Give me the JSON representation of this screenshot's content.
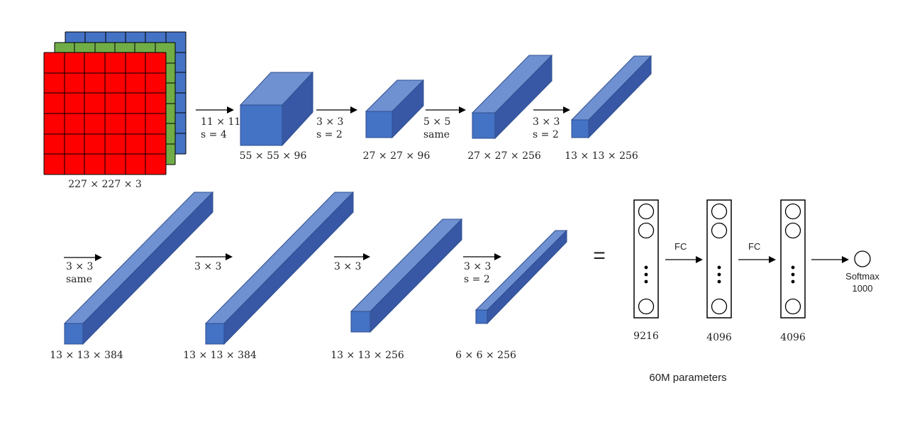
{
  "input": {
    "label": "227 × 227 × 3",
    "channel_colors": {
      "red": "#ff0000",
      "green": "#70ad47",
      "blue": "#4472c4"
    }
  },
  "colors": {
    "block_front": "#4472c4",
    "block_top": "#6f90d1",
    "block_side": "#3858a6",
    "edge": "#2f4f8f"
  },
  "row1": {
    "ops": [
      {
        "line1": "11 × 11",
        "line2": "s = 4"
      },
      {
        "line1": "3 × 3",
        "line2": "s = 2"
      },
      {
        "line1": "5 × 5",
        "line2": "same"
      },
      {
        "line1": "3 × 3",
        "line2": "s = 2"
      }
    ],
    "blocks": [
      {
        "label": "55 × 55 × 96"
      },
      {
        "label": "27 × 27 × 96"
      },
      {
        "label": "27 × 27 × 256"
      },
      {
        "label": "13 × 13 × 256"
      }
    ]
  },
  "row2": {
    "ops": [
      {
        "line1": "3 × 3",
        "line2": "same"
      },
      {
        "line1": "3 × 3",
        "line2": ""
      },
      {
        "line1": "3 × 3",
        "line2": ""
      },
      {
        "line1": "3 × 3",
        "line2": "s = 2"
      }
    ],
    "blocks": [
      {
        "label": "13 × 13 × 384"
      },
      {
        "label": "13 × 13 × 384"
      },
      {
        "label": "13 × 13 × 256"
      },
      {
        "label": "6 × 6 × 256"
      }
    ]
  },
  "equals": "=",
  "fc": {
    "layers": [
      {
        "label": "9216"
      },
      {
        "label": "4096"
      },
      {
        "label": "4096"
      }
    ],
    "links": [
      "FC",
      "FC"
    ],
    "ellipsis": "⋮",
    "output_line1": "Softmax",
    "output_line2": "1000"
  },
  "caption": "60M parameters"
}
